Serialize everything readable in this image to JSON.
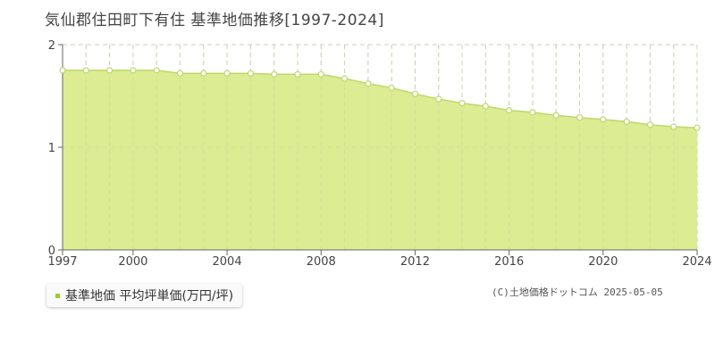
{
  "title": "気仙郡住田町下有住 基準地価推移[1997-2024]",
  "legend": {
    "label": "基準地価 平均坪単価(万円/坪)"
  },
  "copyright": "(C)土地価格ドットコム 2025-05-05",
  "colors": {
    "fill": "#dcec93",
    "line": "#bcd86a",
    "marker_fill": "#ffffff",
    "legend_swatch": "#99cc33"
  },
  "chart_data": {
    "type": "area",
    "title": "",
    "xlabel": "",
    "ylabel": "",
    "ylim": [
      0,
      2
    ],
    "yticks": [
      0,
      1,
      2
    ],
    "xlim": [
      1997,
      2024
    ],
    "xticks": [
      1997,
      2000,
      2004,
      2008,
      2012,
      2016,
      2020,
      2024
    ],
    "grid": true,
    "series": [
      {
        "name": "基準地価 平均坪単価(万円/坪)",
        "x": [
          1997,
          1998,
          1999,
          2000,
          2001,
          2002,
          2003,
          2004,
          2005,
          2006,
          2007,
          2008,
          2009,
          2010,
          2011,
          2012,
          2013,
          2014,
          2015,
          2016,
          2017,
          2018,
          2019,
          2020,
          2021,
          2022,
          2023,
          2024
        ],
        "y": [
          1.75,
          1.75,
          1.75,
          1.75,
          1.75,
          1.72,
          1.72,
          1.72,
          1.72,
          1.71,
          1.71,
          1.71,
          1.67,
          1.62,
          1.58,
          1.52,
          1.47,
          1.43,
          1.4,
          1.36,
          1.34,
          1.31,
          1.29,
          1.27,
          1.25,
          1.22,
          1.2,
          1.19
        ]
      }
    ]
  }
}
